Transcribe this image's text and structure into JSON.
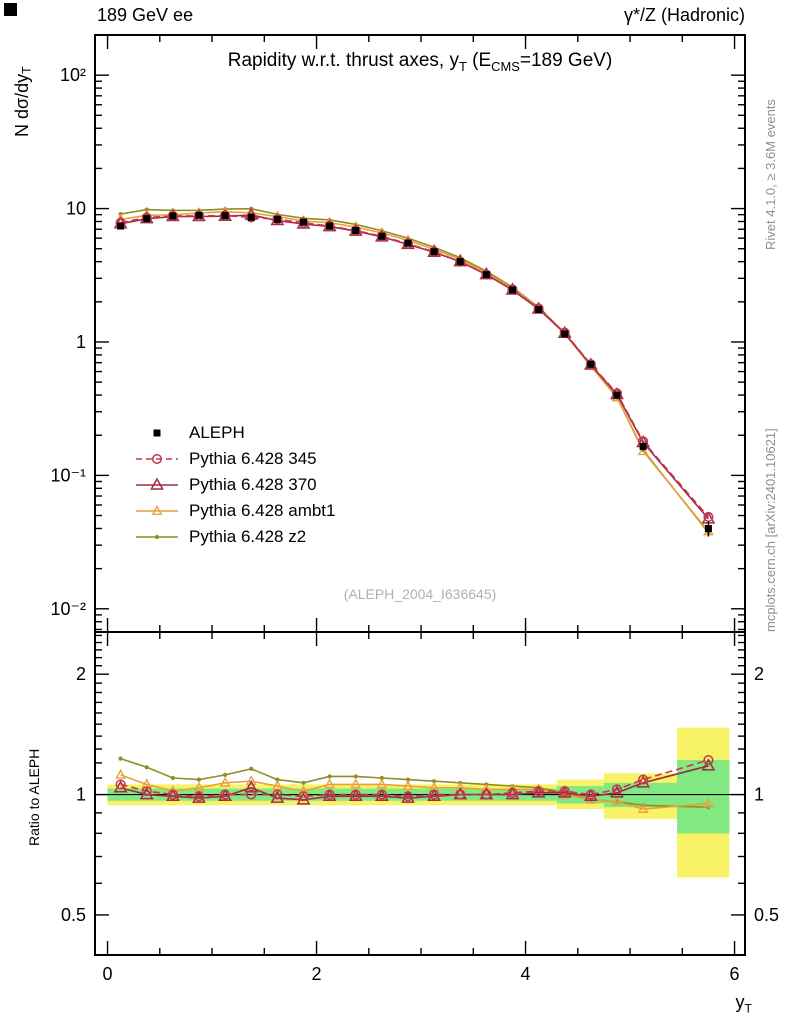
{
  "header": {
    "left": "189 GeV ee",
    "right": "γ*/Z (Hadronic)"
  },
  "title": {
    "pre": "Rapidity w.r.t. thrust axes, y",
    "sub1": "T",
    "mid": " (E",
    "sub2": "CMS",
    "post": "=189 GeV)"
  },
  "watermark": "(ALEPH_2004_I636645)",
  "side_texts": {
    "rivet": "Rivet 4.1.0, ≥ 3.6M events",
    "mcplots": "mcplots.cern.ch [arXiv:2401.10621]"
  },
  "axes": {
    "y_main_label": {
      "pre": "N  dσ/dy",
      "sub": "T"
    },
    "y_ratio_label": "Ratio to ALEPH",
    "x_label": {
      "pre": "y",
      "sub": "T"
    },
    "y_main_ticks": [
      {
        "v": 100,
        "label": "10²"
      },
      {
        "v": 10,
        "label": "10"
      },
      {
        "v": 1,
        "label": "1"
      },
      {
        "v": 0.1,
        "label": "10⁻¹"
      },
      {
        "v": 0.01,
        "label": "10⁻²"
      }
    ],
    "y_ratio_ticks": [
      {
        "v": 2,
        "label": "2"
      },
      {
        "v": 1,
        "label": "1"
      },
      {
        "v": 0.5,
        "label": "0.5"
      }
    ],
    "x_ticks": [
      {
        "v": 0,
        "label": "0"
      },
      {
        "v": 2,
        "label": "2"
      },
      {
        "v": 4,
        "label": "4"
      },
      {
        "v": 6,
        "label": "6"
      }
    ]
  },
  "legend": [
    {
      "label": "ALEPH",
      "series": "aleph"
    },
    {
      "label": "Pythia 6.428 345",
      "series": "p345"
    },
    {
      "label": "Pythia 6.428 370",
      "series": "p370"
    },
    {
      "label": "Pythia 6.428 ambt1",
      "series": "ambt1"
    },
    {
      "label": "Pythia 6.428 z2",
      "series": "z2"
    }
  ],
  "chart_data": {
    "type": "line",
    "title": "Rapidity w.r.t. thrust axes, y_T (E_CMS=189 GeV)",
    "xlabel": "y_T",
    "ylabel": "N dσ/dy_T",
    "ratio_ylabel": "Ratio to ALEPH",
    "yscale": "log",
    "xlim": [
      -0.12,
      6.1
    ],
    "main_ylim": [
      0.0067,
      200
    ],
    "ratio_ylim": [
      0.397,
      2.55
    ],
    "x": [
      0.125,
      0.375,
      0.625,
      0.875,
      1.125,
      1.375,
      1.625,
      1.875,
      2.125,
      2.375,
      2.625,
      2.875,
      3.125,
      3.375,
      3.625,
      3.875,
      4.125,
      4.375,
      4.625,
      4.875,
      5.125,
      5.75
    ],
    "series": [
      {
        "key": "aleph",
        "name": "ALEPH",
        "marker": "square-filled",
        "color": "#000000",
        "values": [
          7.4,
          8.4,
          8.8,
          8.9,
          8.85,
          8.6,
          8.3,
          7.9,
          7.4,
          6.85,
          6.2,
          5.5,
          4.75,
          4.0,
          3.2,
          2.45,
          1.75,
          1.15,
          0.68,
          0.4,
          0.165,
          0.04
        ],
        "err_rel": [
          0.015,
          0.012,
          0.012,
          0.012,
          0.012,
          0.012,
          0.012,
          0.012,
          0.013,
          0.013,
          0.014,
          0.015,
          0.016,
          0.018,
          0.02,
          0.022,
          0.025,
          0.03,
          0.04,
          0.05,
          0.07,
          0.13
        ]
      },
      {
        "key": "p345",
        "name": "Pythia 6.428 345",
        "marker": "circle-open",
        "color": "#c7354e",
        "dash": true,
        "ratio": [
          1.06,
          1.02,
          1.0,
          0.99,
          1.0,
          1.0,
          1.0,
          0.99,
          1.0,
          1.0,
          1.0,
          0.99,
          1.0,
          1.0,
          1.0,
          1.01,
          1.02,
          1.02,
          1.0,
          1.03,
          1.09,
          1.22
        ]
      },
      {
        "key": "p370",
        "name": "Pythia 6.428 370",
        "marker": "triangle-open",
        "color": "#a02b45",
        "dash": false,
        "ratio": [
          1.04,
          1.0,
          0.99,
          0.98,
          0.99,
          1.04,
          0.98,
          0.97,
          0.99,
          0.99,
          0.99,
          0.98,
          0.99,
          1.0,
          1.0,
          1.0,
          1.01,
          1.01,
          0.99,
          1.01,
          1.07,
          1.18
        ]
      },
      {
        "key": "ambt1",
        "name": "Pythia 6.428 ambt1",
        "marker": "triangle-open-small",
        "color": "#e6a23c",
        "dash": false,
        "ratio": [
          1.12,
          1.06,
          1.02,
          1.04,
          1.07,
          1.08,
          1.05,
          1.02,
          1.06,
          1.06,
          1.06,
          1.05,
          1.04,
          1.04,
          1.03,
          1.03,
          1.03,
          1.0,
          0.97,
          0.96,
          0.92,
          0.95
        ]
      },
      {
        "key": "z2",
        "name": "Pythia 6.428 z2",
        "marker": "dot",
        "color": "#8e8e25",
        "dash": false,
        "ratio": [
          1.23,
          1.17,
          1.1,
          1.09,
          1.12,
          1.16,
          1.09,
          1.07,
          1.11,
          1.11,
          1.1,
          1.09,
          1.08,
          1.07,
          1.06,
          1.05,
          1.04,
          1.01,
          0.97,
          0.96,
          0.94,
          0.93
        ]
      }
    ],
    "bands": {
      "yellow": {
        "color": "#f8f266",
        "segments": [
          [
            0.0,
            4.3,
            0.94,
            1.06
          ],
          [
            4.3,
            4.75,
            0.92,
            1.09
          ],
          [
            4.75,
            5.45,
            0.87,
            1.13
          ],
          [
            5.45,
            5.95,
            0.62,
            1.47
          ]
        ]
      },
      "green": {
        "color": "#82e882",
        "segments": [
          [
            0.0,
            4.3,
            0.965,
            1.035
          ],
          [
            4.3,
            4.75,
            0.95,
            1.05
          ],
          [
            4.75,
            5.45,
            0.93,
            1.07
          ],
          [
            5.45,
            5.95,
            0.8,
            1.22
          ]
        ]
      }
    }
  }
}
